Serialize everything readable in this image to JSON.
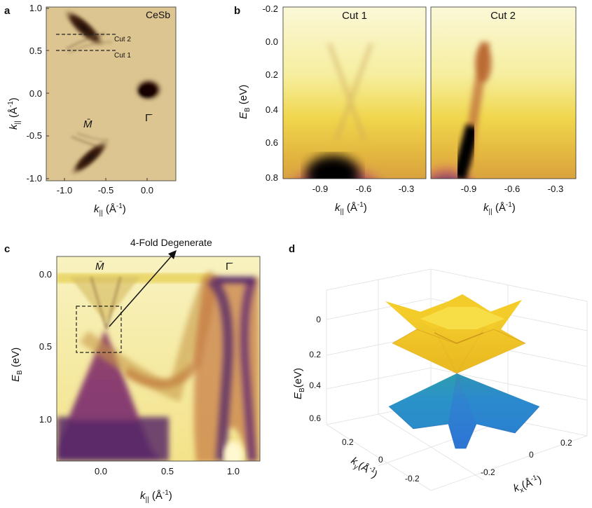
{
  "panels": {
    "a": {
      "label": "a",
      "sample": "CeSb",
      "cut2": "Cut 2",
      "cut1": "Cut 1",
      "m_point": "M̄",
      "g_point": "Γ̄",
      "ylabel_main": "k",
      "ylabel_sub": "||",
      "ylabel_unit": " (Å",
      "ylabel_exp": "-1",
      "ylabel_close": ")",
      "xlabel_main": "k",
      "xlabel_sub": "||",
      "xlabel_unit": " (Å",
      "xlabel_exp": "-1",
      "xlabel_close": ")",
      "yticks": [
        "1.0",
        "0.5",
        "0.0",
        "-0.5",
        "-1.0"
      ],
      "xticks": [
        "-1.0",
        "-0.5",
        "0.0"
      ]
    },
    "b": {
      "label": "b",
      "cut1_title": "Cut 1",
      "cut2_title": "Cut 2",
      "ylabel_main": "E",
      "ylabel_sub": "B",
      "ylabel_unit": " (eV)",
      "yticks": [
        "-0.2",
        "0.0",
        "0.2",
        "0.4",
        "0.6",
        "0.8"
      ],
      "xticks": [
        "-0.9",
        "-0.6",
        "-0.3"
      ],
      "xlabel_main": "k",
      "xlabel_sub": "||",
      "xlabel_unit": " (Å",
      "xlabel_exp": "-1",
      "xlabel_close": ")"
    },
    "c": {
      "label": "c",
      "annotation": "4-Fold Degenerate",
      "m_point": "M̄",
      "g_point": "Γ̄",
      "ylabel_main": "E",
      "ylabel_sub": "B",
      "ylabel_unit": " (eV)",
      "yticks": [
        "0.0",
        "0.5",
        "1.0"
      ],
      "xticks": [
        "0.0",
        "0.5",
        "1.0"
      ],
      "xlabel_main": "k",
      "xlabel_sub": "||",
      "xlabel_unit": " (Å",
      "xlabel_exp": "-1",
      "xlabel_close": ")"
    },
    "d": {
      "label": "d",
      "zlabel_main": "E",
      "zlabel_sub": "B",
      "zlabel_unit": "(eV)",
      "zticks": [
        "0",
        "0.2",
        "0.4",
        "0.6"
      ],
      "ky_ticks": [
        "0.2",
        "0",
        "-0.2"
      ],
      "kx_ticks": [
        "-0.2",
        "0",
        "0.2"
      ],
      "kylabel_main": "k",
      "kylabel_sub": "y",
      "kylabel_unit": "(Å",
      "kylabel_exp": "-1",
      "kylabel_close": ")",
      "kxlabel_main": "k",
      "kxlabel_sub": "x",
      "kxlabel_unit": "(Å",
      "kxlabel_exp": "-1",
      "kxlabel_close": ")"
    }
  },
  "colors": {
    "background_cream": "#f7f2c6",
    "band_dark": "#1a0a12",
    "band_purple": "#6b2f72",
    "band_orange": "#c87a3a",
    "band_yellow": "#e8d24a",
    "cone_upper": "#f2c530",
    "cone_lower": "#2b8fd0",
    "panel_a_bg": "#d9c08a"
  }
}
